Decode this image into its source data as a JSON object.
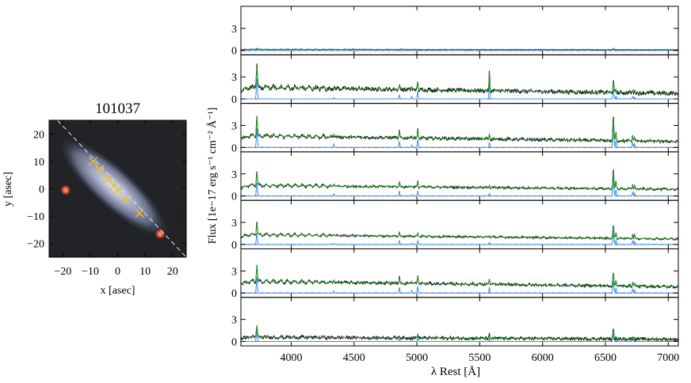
{
  "colors": {
    "observed": "#000000",
    "model": "#1f9e1f",
    "emission": "#3a8fe8",
    "baseline": "#3b3bd6",
    "slit": "#e8e8e8",
    "marker": "#f0c020",
    "background_star": "#d84a32"
  },
  "chart_data": [
    {
      "type": "scatter",
      "title": "101037",
      "xlabel": "x [asec]",
      "ylabel": "y [asec]",
      "xlim": [
        -25,
        25
      ],
      "ylim": [
        -25,
        25
      ],
      "xticks": [
        -20,
        -10,
        0,
        10,
        20
      ],
      "yticks": [
        -20,
        -10,
        0,
        10,
        20
      ],
      "galaxy": {
        "center": [
          -1.5,
          0.5
        ],
        "major_axis": 26,
        "minor_axis": 7.5,
        "angle_deg": 42
      },
      "slit": {
        "from": [
          -22,
          25
        ],
        "to": [
          25,
          -25
        ]
      },
      "fiber_points": [
        {
          "x": -9,
          "y": 10
        },
        {
          "x": -6.5,
          "y": 7
        },
        {
          "x": -3.8,
          "y": 3.5
        },
        {
          "x": -1.5,
          "y": 1
        },
        {
          "x": 0,
          "y": -0.5
        },
        {
          "x": 2.8,
          "y": -4
        },
        {
          "x": 8,
          "y": -9
        }
      ],
      "background_sources": [
        {
          "x": -19,
          "y": -0.5
        },
        {
          "x": 15.5,
          "y": -16.5
        }
      ]
    },
    {
      "type": "line",
      "xlabel": "λ Rest [Å]",
      "ylabel": "Flux [1e−17 erg s⁻¹ cm⁻² Å⁻¹]",
      "xlim": [
        3600,
        7080
      ],
      "xticks": [
        4000,
        4500,
        5000,
        5500,
        6000,
        6500,
        7000
      ],
      "panel_ylim": [
        -0.6,
        6
      ],
      "panel_yticks": [
        0,
        3
      ],
      "emission_lines": [
        3727,
        4340,
        4861,
        4959,
        5007,
        5577,
        6563,
        6584,
        6717,
        6731
      ],
      "panels": [
        {
          "continuum_blue": 0.15,
          "continuum_red": 0.1,
          "noise": 0.05,
          "lines": {
            "3727": 0.2,
            "6563": 0.15
          }
        },
        {
          "continuum_blue": 1.6,
          "continuum_red": 0.75,
          "noise": 0.28,
          "lines": {
            "3727": 3.2,
            "4340": 0.2,
            "4861": 0.7,
            "4959": 0.4,
            "5007": 1.3,
            "5577": 2.8,
            "6563": 1.5,
            "6584": 0.4,
            "6717": 0.4,
            "6731": 0.3
          }
        },
        {
          "continuum_blue": 1.6,
          "continuum_red": 0.8,
          "noise": 0.2,
          "lines": {
            "3727": 3.0,
            "4340": 0.5,
            "4861": 1.0,
            "4959": 0.4,
            "5007": 1.3,
            "5577": 0.8,
            "6563": 3.3,
            "6584": 1.0,
            "6717": 0.8,
            "6731": 0.6
          }
        },
        {
          "continuum_blue": 1.45,
          "continuum_red": 0.9,
          "noise": 0.14,
          "lines": {
            "3727": 2.1,
            "4340": 0.3,
            "4861": 0.8,
            "4959": 0.2,
            "5007": 0.8,
            "5577": 0.4,
            "6563": 2.8,
            "6584": 0.9,
            "6717": 0.7,
            "6731": 0.5
          }
        },
        {
          "continuum_blue": 1.35,
          "continuum_red": 0.75,
          "noise": 0.13,
          "lines": {
            "3727": 1.8,
            "4340": 0.2,
            "4861": 0.6,
            "4959": 0.2,
            "5007": 0.6,
            "5577": 0.3,
            "6563": 1.9,
            "6584": 0.7,
            "6717": 0.6,
            "6731": 0.5
          }
        },
        {
          "continuum_blue": 1.6,
          "continuum_red": 0.85,
          "noise": 0.18,
          "lines": {
            "3727": 2.4,
            "4340": 0.3,
            "4861": 0.9,
            "4959": 0.4,
            "5007": 1.1,
            "5577": 0.9,
            "6563": 1.9,
            "6584": 0.7,
            "6717": 0.6,
            "6731": 0.5
          }
        },
        {
          "continuum_blue": 0.6,
          "continuum_red": 0.3,
          "noise": 0.22,
          "lines": {
            "3727": 1.7,
            "4861": 0.3,
            "4959": 0.2,
            "5007": 0.6,
            "5577": 0.5,
            "6563": 1.2,
            "6584": 0.4,
            "6717": 0.4,
            "6731": 0.3
          }
        }
      ]
    }
  ]
}
